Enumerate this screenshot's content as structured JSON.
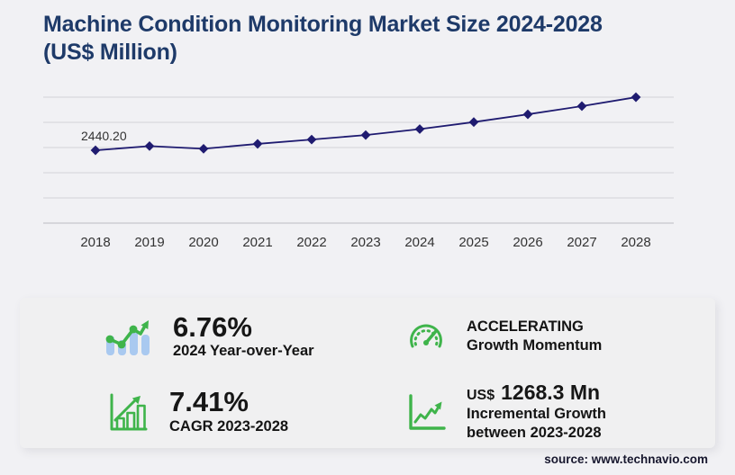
{
  "title": "Machine Condition Monitoring Market Size 2024-2028\n(US$ Million)",
  "source": "source: www.technavio.com",
  "colors": {
    "background": "#f1f1f4",
    "card": "#f0f0f1",
    "title": "#1e3a69",
    "line": "#1f1b70",
    "grid": "#d9d9de",
    "axis": "#c7c7cc",
    "tick_text": "#333333",
    "green": "#3fb44b",
    "blue": "#a9c9f0",
    "text": "#141414"
  },
  "chart_data": {
    "type": "line",
    "title": "Machine Condition Monitoring Market Size 2024-2028 (US$ Million)",
    "x": [
      2018,
      2019,
      2020,
      2021,
      2022,
      2023,
      2024,
      2025,
      2026,
      2027,
      2028
    ],
    "values": [
      2440.2,
      2580,
      2490,
      2655,
      2800,
      2950.2,
      3149.7,
      3385,
      3645,
      3920,
      4218.5
    ],
    "point_label": {
      "x": 2018,
      "text": "2440.20"
    },
    "marker": "diamond",
    "xlabel": "",
    "ylabel": "",
    "ylim": [
      0,
      4220
    ],
    "y_axis_labels_visible": false,
    "gridlines": "horizontal",
    "legend": "none"
  },
  "stats": [
    {
      "id": "yoy",
      "icon": "bar-chart-trend-icon",
      "value": "6.76%",
      "label": "2024 Year-over-Year"
    },
    {
      "id": "momentum",
      "icon": "speedometer-icon",
      "line1": "ACCELERATING",
      "line2": "Growth Momentum"
    },
    {
      "id": "cagr",
      "icon": "growth-chart-icon",
      "value": "7.41%",
      "label": "CAGR 2023-2028"
    },
    {
      "id": "incremental",
      "icon": "trend-up-icon",
      "prefix": "US$",
      "value": "1268.3 Mn",
      "label_line1": "Incremental Growth",
      "label_line2": "between 2023-2028"
    }
  ]
}
